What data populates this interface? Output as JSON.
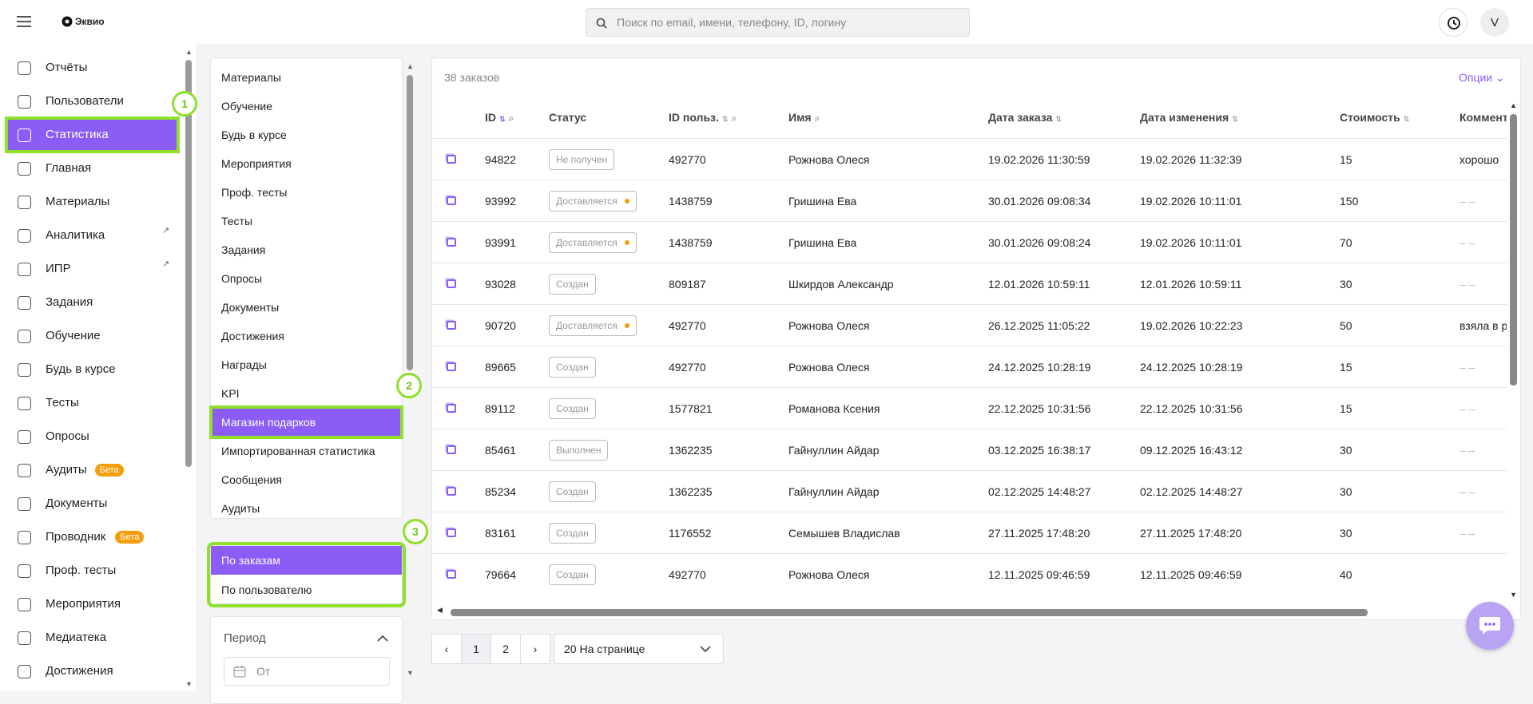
{
  "header": {
    "logo": "Эквио",
    "search_placeholder": "Поиск по email, имени, телефону, ID, логину",
    "avatar": "V"
  },
  "sidebar": {
    "active": 2,
    "items": [
      {
        "label": "Отчёты"
      },
      {
        "label": "Пользователи"
      },
      {
        "label": "Статистика"
      },
      {
        "label": "Главная"
      },
      {
        "label": "Материалы"
      },
      {
        "label": "Аналитика",
        "external": true
      },
      {
        "label": "ИПР",
        "external": true
      },
      {
        "label": "Задания"
      },
      {
        "label": "Обучение"
      },
      {
        "label": "Будь в курсе"
      },
      {
        "label": "Тесты"
      },
      {
        "label": "Опросы"
      },
      {
        "label": "Аудиты",
        "badge": "Бета"
      },
      {
        "label": "Документы"
      },
      {
        "label": "Проводник",
        "badge": "Бета"
      },
      {
        "label": "Проф. тесты"
      },
      {
        "label": "Мероприятия"
      },
      {
        "label": "Медиатека"
      },
      {
        "label": "Достижения"
      }
    ]
  },
  "submenu": {
    "active": 12,
    "items": [
      "Материалы",
      "Обучение",
      "Будь в курсе",
      "Мероприятия",
      "Проф. тесты",
      "Тесты",
      "Задания",
      "Опросы",
      "Документы",
      "Достижения",
      "Награды",
      "KPI",
      "Магазин подарков",
      "Импортированная статистика",
      "Сообщения",
      "Аудиты"
    ]
  },
  "report_types": {
    "active": 0,
    "items": [
      "По заказам",
      "По пользователю"
    ]
  },
  "filter": {
    "title": "Период",
    "from": "От"
  },
  "orders": {
    "count": "38 заказов",
    "options": "Опции",
    "columns": [
      {
        "label": "ID",
        "sort": true,
        "search": true
      },
      {
        "label": "Статус"
      },
      {
        "label": "ID польз.",
        "sort": true,
        "search": true
      },
      {
        "label": "Имя",
        "search": true
      },
      {
        "label": "Дата заказа",
        "sort": true
      },
      {
        "label": "Дата изменения",
        "sort": true
      },
      {
        "label": "Стоимость",
        "sort": true
      },
      {
        "label": "Коммент"
      }
    ],
    "rows": [
      {
        "cells": [
          "94822",
          "Не получен",
          "492770",
          "Рожнова Олеся",
          "19.02.2026 11:30:59",
          "19.02.2026 11:32:39",
          15,
          "хорошо"
        ]
      },
      {
        "cells": [
          "93992",
          "Доставляется",
          "1438759",
          "Гришина Ева",
          "30.01.2026 09:08:34",
          "19.02.2026 10:11:01",
          150,
          "– –"
        ],
        "dot": true
      },
      {
        "cells": [
          "93991",
          "Доставляется",
          "1438759",
          "Гришина Ева",
          "30.01.2026 09:08:24",
          "19.02.2026 10:11:01",
          70,
          "– –"
        ],
        "dot": true
      },
      {
        "cells": [
          "93028",
          "Создан",
          "809187",
          "Шкирдов Александр",
          "12.01.2026 10:59:11",
          "12.01.2026 10:59:11",
          30,
          "– –"
        ]
      },
      {
        "cells": [
          "90720",
          "Доставляется",
          "492770",
          "Рожнова Олеся",
          "26.12.2025 11:05:22",
          "19.02.2026 10:22:23",
          50,
          "взяла в р"
        ],
        "dot": true
      },
      {
        "cells": [
          "89665",
          "Создан",
          "492770",
          "Рожнова Олеся",
          "24.12.2025 10:28:19",
          "24.12.2025 10:28:19",
          15,
          "– –"
        ]
      },
      {
        "cells": [
          "89112",
          "Создан",
          "1577821",
          "Романова Ксения",
          "22.12.2025 10:31:56",
          "22.12.2025 10:31:56",
          15,
          "– –"
        ]
      },
      {
        "cells": [
          "85461",
          "Выполнен",
          "1362235",
          "Гайнуллин Айдар",
          "03.12.2025 16:38:17",
          "09.12.2025 16:43:12",
          30,
          "– –"
        ]
      },
      {
        "cells": [
          "85234",
          "Создан",
          "1362235",
          "Гайнуллин Айдар",
          "02.12.2025 14:48:27",
          "02.12.2025 14:48:27",
          30,
          "– –"
        ]
      },
      {
        "cells": [
          "83161",
          "Создан",
          "1176552",
          "Семышев Владислав",
          "27.11.2025 17:48:20",
          "27.11.2025 17:48:20",
          30,
          "– –"
        ]
      },
      {
        "cells": [
          "79664",
          "Создан",
          "492770",
          "Рожнова Олеся",
          "12.11.2025 09:46:59",
          "12.11.2025 09:46:59",
          40
        ]
      }
    ]
  },
  "pagination": {
    "pages": [
      1,
      2
    ],
    "per_page": "20 На странице"
  },
  "annotations": [
    "1",
    "2",
    "3"
  ]
}
